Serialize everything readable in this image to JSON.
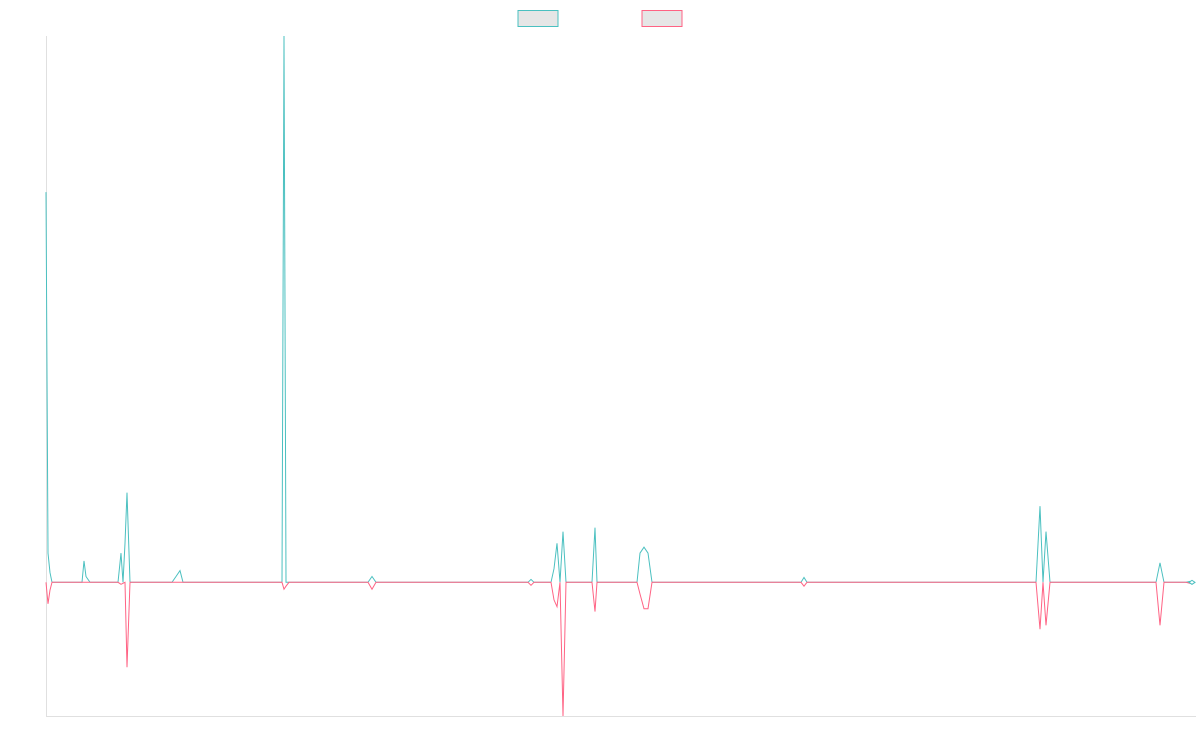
{
  "chart_data": {
    "type": "line",
    "title": "",
    "xlabel": "",
    "ylabel": "",
    "grid": false,
    "legend_position": "top-center",
    "x_range": [
      0,
      1148
    ],
    "ylim": [
      -137,
      560
    ],
    "series": [
      {
        "color": "#4bc0c0",
        "fill": "#e6e6e6",
        "points": [
          [
            0,
            400
          ],
          [
            2,
            30
          ],
          [
            4,
            10
          ],
          [
            6,
            0
          ],
          [
            36,
            0
          ],
          [
            38,
            22
          ],
          [
            40,
            6
          ],
          [
            44,
            0
          ],
          [
            72,
            0
          ],
          [
            75,
            30
          ],
          [
            77,
            0
          ],
          [
            79,
            40
          ],
          [
            81,
            92
          ],
          [
            84,
            0
          ],
          [
            126,
            0
          ],
          [
            130,
            6
          ],
          [
            134,
            12
          ],
          [
            137,
            0
          ],
          [
            236,
            0
          ],
          [
            238,
            560
          ],
          [
            240,
            0
          ],
          [
            243,
            0
          ],
          [
            322,
            0
          ],
          [
            326,
            6
          ],
          [
            330,
            0
          ],
          [
            482,
            0
          ],
          [
            485,
            3
          ],
          [
            488,
            0
          ],
          [
            505,
            0
          ],
          [
            508,
            14
          ],
          [
            511,
            40
          ],
          [
            514,
            0
          ],
          [
            517,
            52
          ],
          [
            520,
            0
          ],
          [
            546,
            0
          ],
          [
            549,
            56
          ],
          [
            551,
            0
          ],
          [
            591,
            0
          ],
          [
            594,
            30
          ],
          [
            598,
            36
          ],
          [
            602,
            30
          ],
          [
            606,
            0
          ],
          [
            612,
            0
          ],
          [
            755,
            0
          ],
          [
            758,
            5
          ],
          [
            761,
            0
          ],
          [
            990,
            0
          ],
          [
            994,
            78
          ],
          [
            997,
            0
          ],
          [
            1000,
            52
          ],
          [
            1004,
            0
          ],
          [
            1110,
            0
          ],
          [
            1114,
            20
          ],
          [
            1118,
            0
          ],
          [
            1140,
            0
          ],
          [
            1144,
            1
          ],
          [
            1148,
            0
          ]
        ]
      },
      {
        "color": "#ff6384",
        "fill": "#e6e6e6",
        "points": [
          [
            0,
            0
          ],
          [
            2,
            -22
          ],
          [
            4,
            -8
          ],
          [
            6,
            0
          ],
          [
            36,
            0
          ],
          [
            40,
            0
          ],
          [
            44,
            0
          ],
          [
            72,
            0
          ],
          [
            75,
            -2
          ],
          [
            79,
            0
          ],
          [
            81,
            -87
          ],
          [
            84,
            0
          ],
          [
            126,
            0
          ],
          [
            130,
            0
          ],
          [
            134,
            0
          ],
          [
            137,
            0
          ],
          [
            156,
            0
          ],
          [
            158,
            0
          ],
          [
            236,
            0
          ],
          [
            238,
            -7
          ],
          [
            240,
            -4
          ],
          [
            243,
            0
          ],
          [
            322,
            0
          ],
          [
            326,
            -7
          ],
          [
            330,
            0
          ],
          [
            482,
            0
          ],
          [
            485,
            -3
          ],
          [
            488,
            0
          ],
          [
            505,
            0
          ],
          [
            508,
            -18
          ],
          [
            511,
            -25
          ],
          [
            514,
            0
          ],
          [
            517,
            -137
          ],
          [
            520,
            0
          ],
          [
            546,
            0
          ],
          [
            549,
            -30
          ],
          [
            551,
            0
          ],
          [
            591,
            0
          ],
          [
            594,
            -12
          ],
          [
            598,
            -27
          ],
          [
            602,
            -27
          ],
          [
            606,
            0
          ],
          [
            755,
            0
          ],
          [
            758,
            -4
          ],
          [
            761,
            0
          ],
          [
            990,
            0
          ],
          [
            994,
            -48
          ],
          [
            997,
            0
          ],
          [
            1000,
            -44
          ],
          [
            1004,
            0
          ],
          [
            1110,
            0
          ],
          [
            1114,
            -44
          ],
          [
            1118,
            0
          ],
          [
            1140,
            0
          ],
          [
            1144,
            -1
          ],
          [
            1148,
            0
          ]
        ]
      }
    ]
  }
}
